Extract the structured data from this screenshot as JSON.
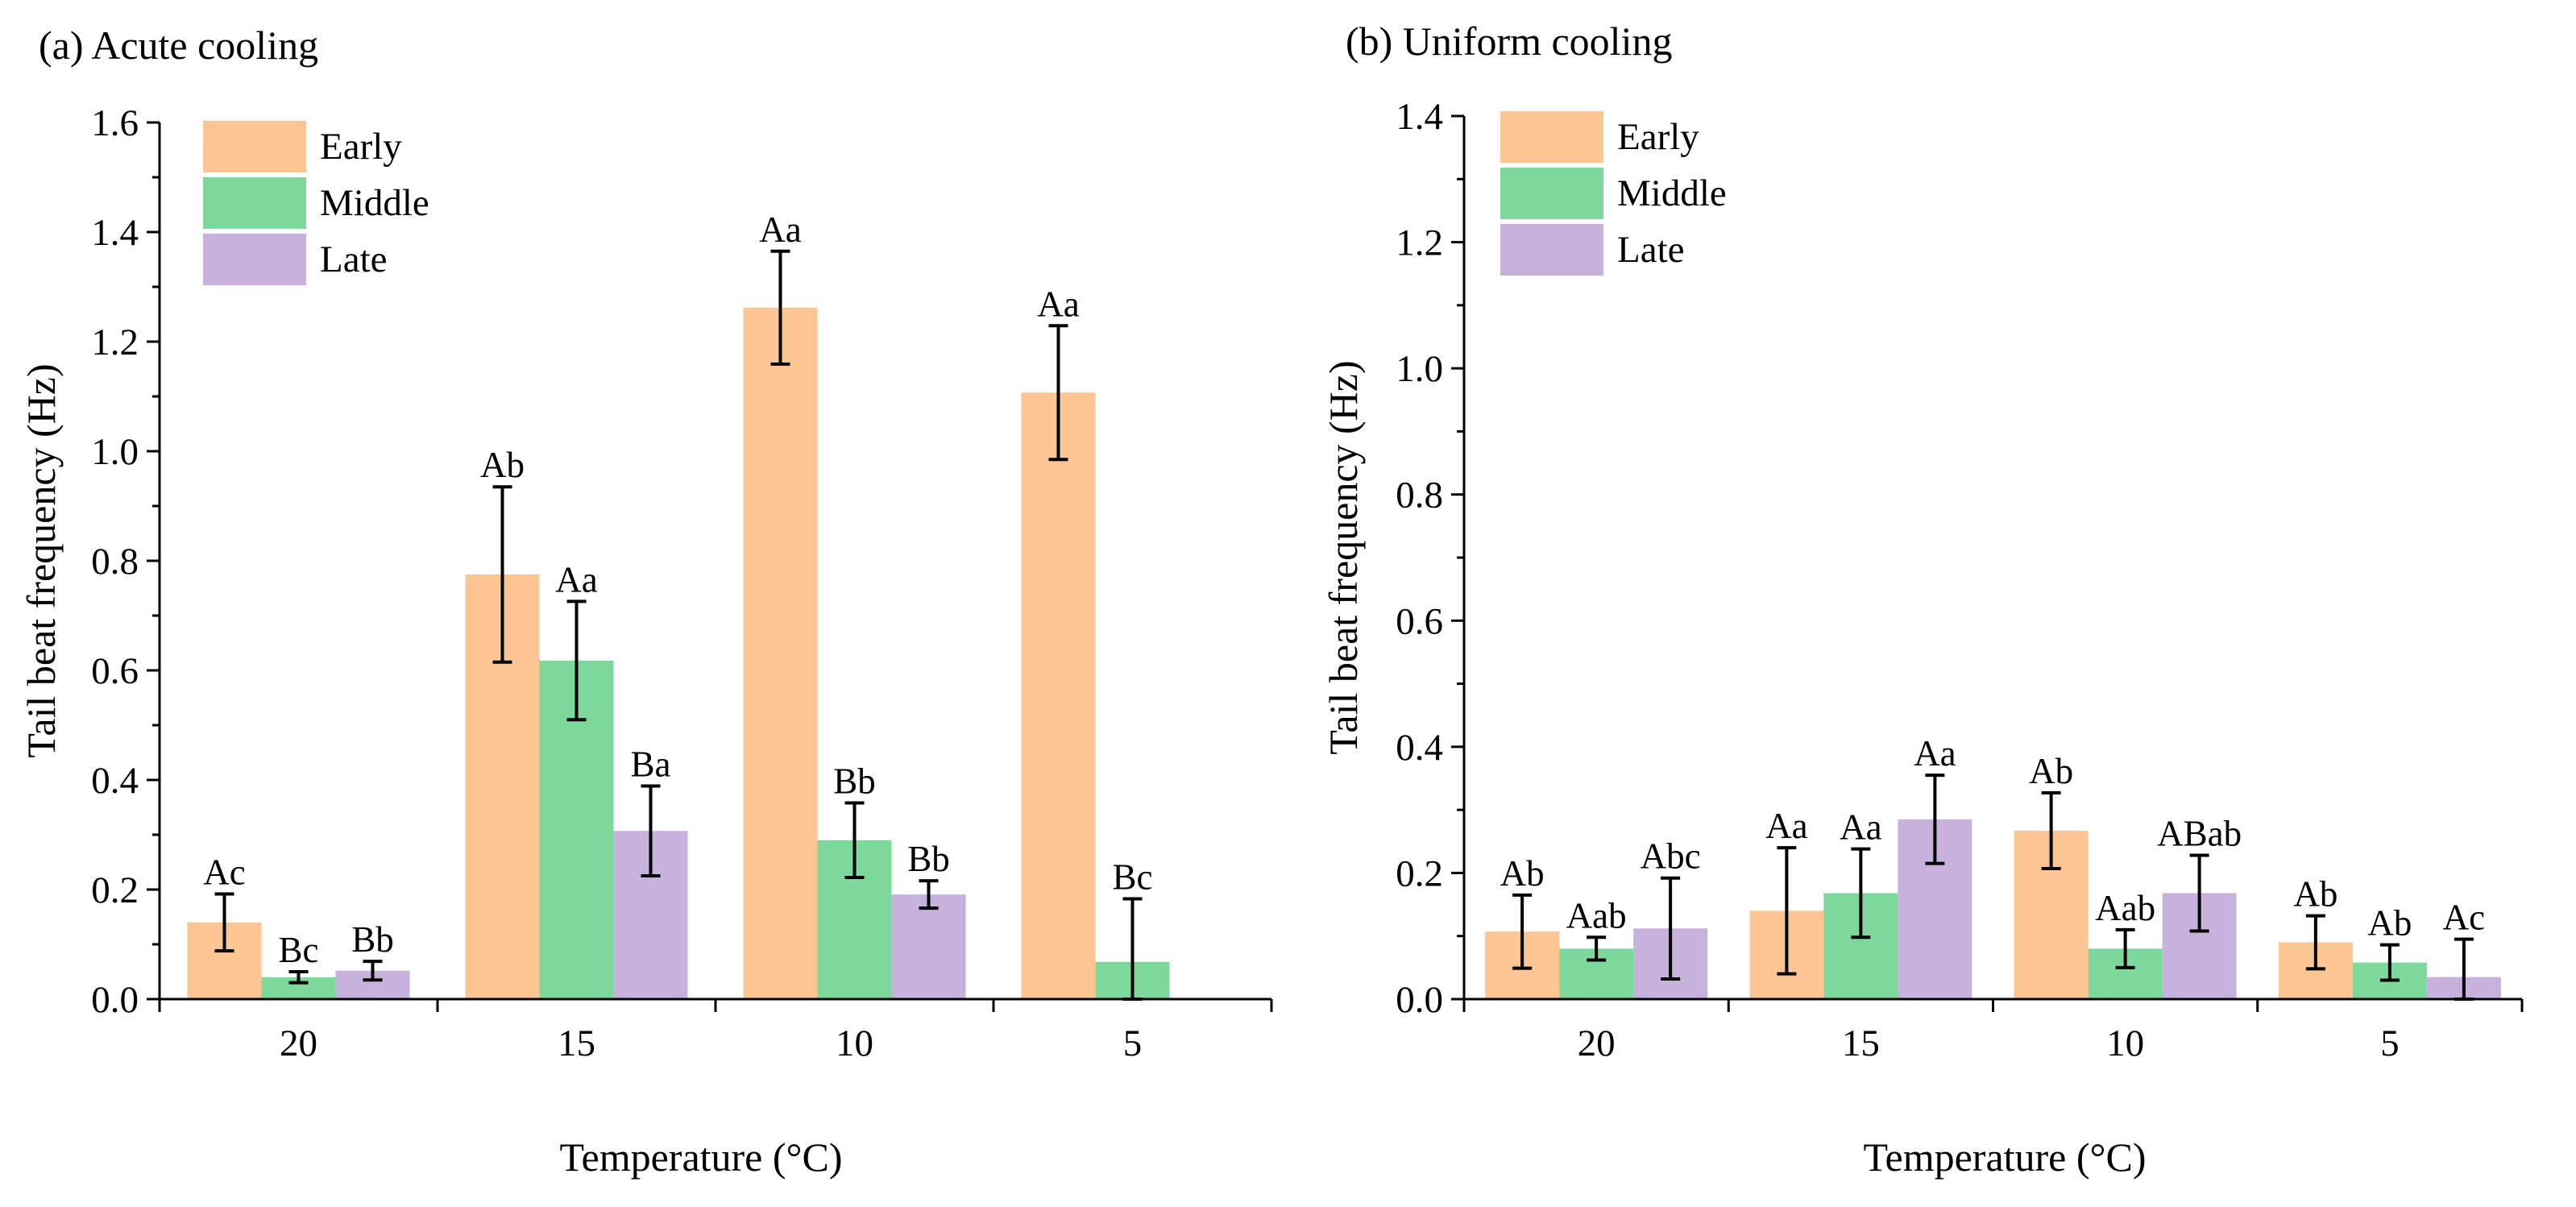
{
  "chart_data": [
    {
      "type": "bar",
      "title": "(a) Acute cooling",
      "xlabel": "Temperature (°C)",
      "ylabel": "Tail beat frequency (Hz)",
      "categories": [
        "20",
        "15",
        "10",
        "5"
      ],
      "ylim": [
        0,
        1.6
      ],
      "yticks": [
        "0.0",
        "0.2",
        "0.4",
        "0.6",
        "0.8",
        "1.0",
        "1.2",
        "1.4",
        "1.6"
      ],
      "grid": false,
      "legend_position": "top-left",
      "series": [
        {
          "name": "Early",
          "color": "#FDC592",
          "values": [
            0.14,
            0.775,
            1.262,
            1.107
          ],
          "errors": [
            0.052,
            0.16,
            0.103,
            0.122
          ],
          "labels": [
            "Ac",
            "Ab",
            "Aa",
            "Aa"
          ]
        },
        {
          "name": "Middle",
          "color": "#7DD99B",
          "values": [
            0.04,
            0.618,
            0.29,
            0.068
          ],
          "errors": [
            0.01,
            0.108,
            0.068,
            0.115
          ],
          "labels": [
            "Bc",
            "Aa",
            "Bb",
            "Bc"
          ]
        },
        {
          "name": "Late",
          "color": "#C6B2DC",
          "values": [
            0.052,
            0.307,
            0.191,
            null
          ],
          "errors": [
            0.017,
            0.082,
            0.025,
            null
          ],
          "labels": [
            "Bb",
            "Ba",
            "Bb",
            null
          ]
        }
      ]
    },
    {
      "type": "bar",
      "title": "(b) Uniform cooling",
      "xlabel": "Temperature (°C)",
      "ylabel": "Tail beat frequency (Hz)",
      "categories": [
        "20",
        "15",
        "10",
        "5"
      ],
      "ylim": [
        0,
        1.4
      ],
      "yticks": [
        "0.0",
        "0.2",
        "0.4",
        "0.6",
        "0.8",
        "1.0",
        "1.2",
        "1.4"
      ],
      "grid": false,
      "legend_position": "top-left",
      "series": [
        {
          "name": "Early",
          "color": "#FDC592",
          "values": [
            0.107,
            0.14,
            0.267,
            0.09
          ],
          "errors": [
            0.058,
            0.1,
            0.06,
            0.042
          ],
          "labels": [
            "Ab",
            "Aa",
            "Ab",
            "Ab"
          ]
        },
        {
          "name": "Middle",
          "color": "#7DD99B",
          "values": [
            0.08,
            0.168,
            0.08,
            0.058
          ],
          "errors": [
            0.018,
            0.07,
            0.03,
            0.028
          ],
          "labels": [
            "Aab",
            "Aa",
            "Aab",
            "Ab"
          ]
        },
        {
          "name": "Late",
          "color": "#C6B2DC",
          "values": [
            0.112,
            0.285,
            0.168,
            0.035
          ],
          "errors": [
            0.08,
            0.07,
            0.06,
            0.06
          ],
          "labels": [
            "Abc",
            "Aa",
            "ABab",
            "Ac"
          ]
        }
      ]
    }
  ]
}
